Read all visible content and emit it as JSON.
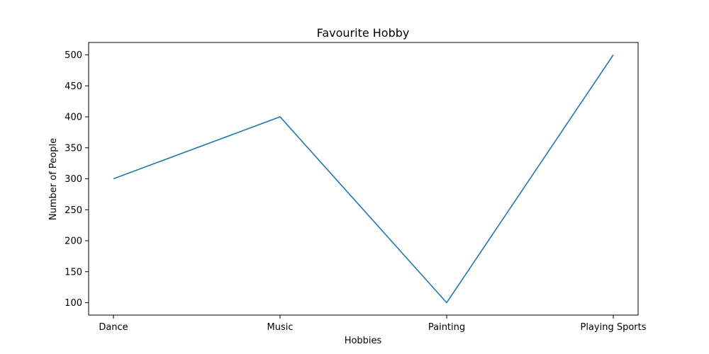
{
  "chart_data": {
    "type": "line",
    "title": "Favourite Hobby",
    "xlabel": "Hobbies",
    "ylabel": "Number of People",
    "categories": [
      "Dance",
      "Music",
      "Painting",
      "Playing Sports"
    ],
    "series": [
      {
        "values": [
          300,
          400,
          100,
          500
        ],
        "color": "#1f77b4"
      }
    ],
    "ylim": [
      80,
      520
    ],
    "yticks": [
      100,
      150,
      200,
      250,
      300,
      350,
      400,
      450,
      500
    ],
    "grid": false,
    "legend": "none"
  }
}
